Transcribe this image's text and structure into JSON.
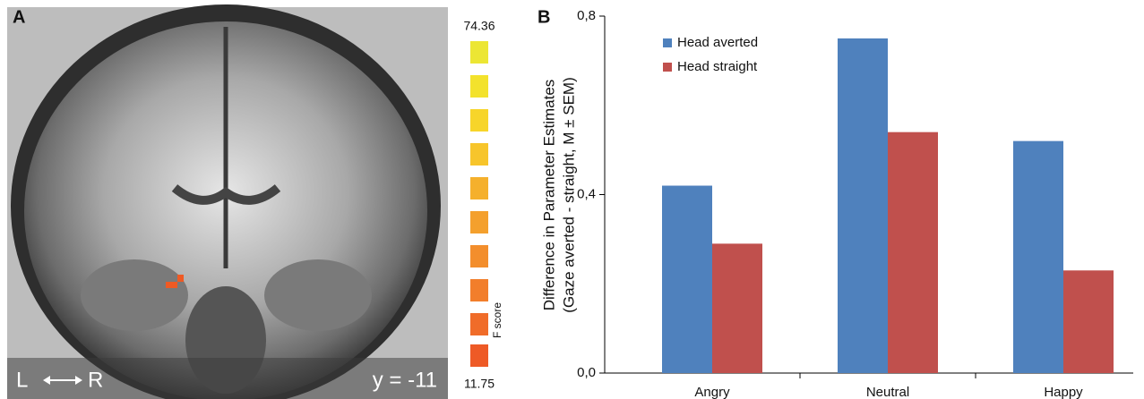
{
  "panel_a": {
    "label": "A",
    "colorbar_max": "74.36",
    "colorbar_min": "11.75",
    "colorbar_title": "F score",
    "left": "L",
    "right": "R",
    "slice": "y = -11"
  },
  "chart_data": {
    "type": "bar",
    "panel_label": "B",
    "ylabel": [
      "Difference in Parameter Estimates",
      "(Gaze averted - straight, M ± SEM)"
    ],
    "categories": [
      "Angry",
      "Neutral",
      "Happy"
    ],
    "series": [
      {
        "name": "Head averted",
        "color": "#4f81bd",
        "values": [
          0.42,
          0.75,
          0.52
        ]
      },
      {
        "name": "Head straight",
        "color": "#c0504d",
        "values": [
          0.29,
          0.54,
          0.23
        ]
      }
    ],
    "ylim": [
      0,
      0.8
    ],
    "yticks": [
      {
        "value": 0,
        "label": "0,0"
      },
      {
        "value": 0.4,
        "label": "0,4"
      },
      {
        "value": 0.8,
        "label": "0,8"
      }
    ],
    "legend": "top-left"
  }
}
